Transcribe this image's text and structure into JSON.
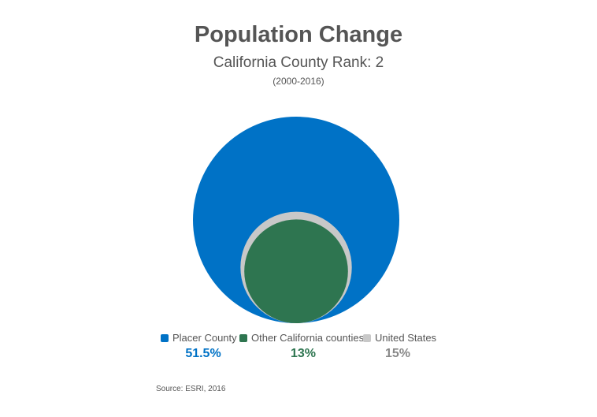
{
  "chart_data": {
    "type": "bubble",
    "title": "Population Change",
    "subtitle": "California County Rank: 2",
    "period": "(2000-2016)",
    "series": [
      {
        "name": "Placer County",
        "value": 51.5,
        "value_label": "51.5%",
        "color": "#0072C6"
      },
      {
        "name": "Other California counties",
        "value": 13,
        "value_label": "13%",
        "color": "#2E7550"
      },
      {
        "name": "United States",
        "value": 15,
        "value_label": "15%",
        "color": "#C8C8C8"
      }
    ],
    "source": "Source: ESRI, 2016"
  }
}
